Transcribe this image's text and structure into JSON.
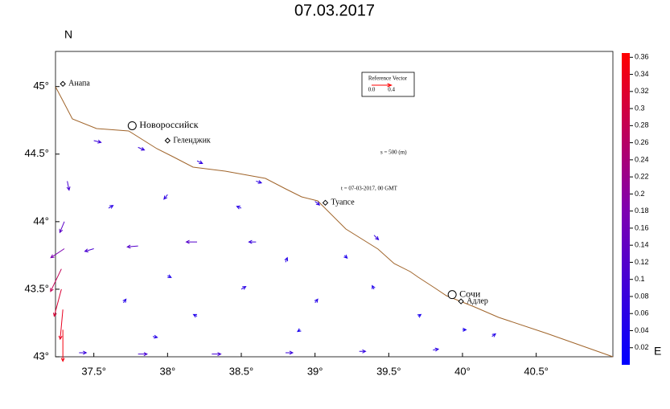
{
  "title": "07.03.2017",
  "map": {
    "xlim": [
      37.24,
      41.02
    ],
    "ylim": [
      43,
      45.26
    ],
    "xticks": [
      {
        "value": 37.5,
        "label": "37.5°"
      },
      {
        "value": 38,
        "label": "38°"
      },
      {
        "value": 38.5,
        "label": "38.5°"
      },
      {
        "value": 39,
        "label": "39°"
      },
      {
        "value": 39.5,
        "label": "39.5°"
      },
      {
        "value": 40,
        "label": "40°"
      },
      {
        "value": 40.5,
        "label": "40.5°"
      }
    ],
    "yticks": [
      {
        "value": 43,
        "label": "43°"
      },
      {
        "value": 43.5,
        "label": "43.5°"
      },
      {
        "value": 44,
        "label": "44°"
      },
      {
        "value": 44.5,
        "label": "44.5°"
      },
      {
        "value": 45,
        "label": "45°"
      }
    ],
    "north": "N",
    "east": "E",
    "cities": [
      {
        "name": "Анапа",
        "lon": 37.29,
        "lat": 45.02,
        "marker": "diamond"
      },
      {
        "name": "Новороссийск",
        "lon": 37.76,
        "lat": 44.71,
        "marker": "circle"
      },
      {
        "name": "Геленджик",
        "lon": 38.0,
        "lat": 44.6,
        "marker": "diamond"
      },
      {
        "name": "Туапсе",
        "lon": 39.07,
        "lat": 44.14,
        "marker": "diamond"
      },
      {
        "name": "Сочи",
        "lon": 39.93,
        "lat": 43.46,
        "marker": "circle"
      },
      {
        "name": "Адлер",
        "lon": 39.99,
        "lat": 43.41,
        "marker": "diamond"
      }
    ],
    "annotations": [
      "s = 500 (m)",
      "t = 07-03-2017,  00  GMT"
    ],
    "reference": {
      "title": "Reference Vector",
      "ticks": [
        {
          "value": 0,
          "label": "0.0"
        },
        {
          "value": 0.4,
          "label": "0.4"
        }
      ]
    },
    "colorbar": {
      "lim": [
        0,
        0.365
      ],
      "ticks": [
        0.02,
        0.04,
        0.06,
        0.08,
        0.1,
        0.12,
        0.14,
        0.16,
        0.18,
        0.2,
        0.22,
        0.24,
        0.26,
        0.28,
        0.3,
        0.32,
        0.34,
        0.36
      ]
    },
    "vectors": {
      "lon": [
        37.28,
        37.28,
        37.29,
        37.29,
        37.3,
        37.3,
        37.32,
        37.5,
        37.8,
        38.2,
        38.6,
        39.0,
        39.4,
        38.6,
        38.2,
        37.8,
        37.5,
        37.4,
        37.8,
        38.3,
        38.8,
        39.3,
        39.8,
        38.0,
        38.5,
        38.0,
        38.5,
        38.8,
        39.0,
        39.4,
        39.7,
        40.0,
        40.2,
        38.2,
        37.7,
        37.6,
        39.2,
        38.9,
        37.9
      ],
      "lat": [
        43.65,
        43.5,
        43.35,
        43.2,
        43.8,
        44.0,
        44.3,
        44.6,
        44.55,
        44.45,
        44.3,
        44.15,
        43.9,
        43.85,
        43.85,
        43.82,
        43.8,
        43.03,
        43.02,
        43.02,
        43.03,
        43.04,
        43.05,
        44.2,
        44.1,
        43.6,
        43.5,
        43.7,
        43.4,
        43.5,
        43.3,
        43.2,
        43.15,
        43.3,
        43.4,
        44.1,
        43.75,
        43.2,
        43.15
      ],
      "u": [
        -0.12,
        -0.08,
        -0.03,
        0.0,
        -0.15,
        -0.05,
        0.02,
        0.08,
        0.07,
        0.06,
        0.06,
        0.05,
        0.05,
        -0.08,
        -0.12,
        -0.12,
        -0.1,
        0.08,
        0.1,
        0.1,
        0.08,
        0.07,
        0.06,
        -0.04,
        -0.05,
        0.04,
        0.05,
        0.02,
        0.03,
        -0.02,
        0.03,
        0.04,
        0.04,
        -0.04,
        0.03,
        0.05,
        0.03,
        -0.03,
        0.05
      ],
      "v": [
        -0.25,
        -0.3,
        -0.33,
        -0.35,
        -0.1,
        -0.12,
        -0.1,
        -0.02,
        -0.03,
        -0.03,
        -0.02,
        -0.04,
        -0.05,
        0.0,
        0.0,
        -0.01,
        -0.03,
        0.0,
        0.0,
        0.0,
        0.0,
        0.0,
        0.01,
        -0.05,
        0.02,
        -0.02,
        0.03,
        0.05,
        0.04,
        0.04,
        0.02,
        0.0,
        0.03,
        0.02,
        0.04,
        0.03,
        -0.03,
        -0.02,
        -0.01
      ]
    }
  }
}
